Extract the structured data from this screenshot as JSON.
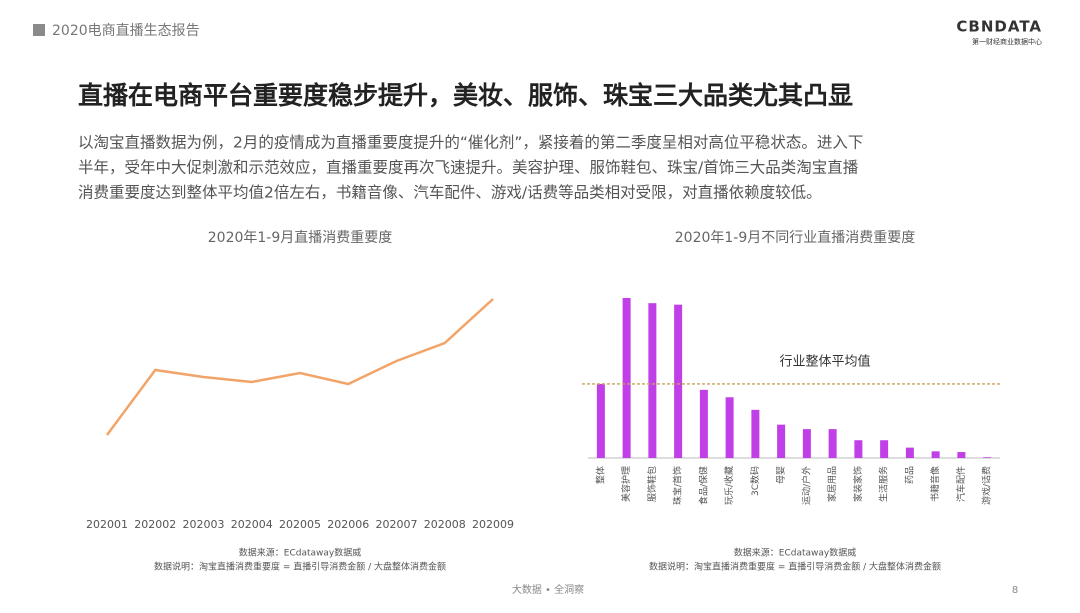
{
  "header": {
    "report": "2020电商直播生态报告",
    "logo": "CBNDATA",
    "logo_sub": "第一财经商业数据中心"
  },
  "title": "直播在电商平台重要度稳步提升，美妆、服饰、珠宝三大品类尤其凸显",
  "paragraph": [
    "以淘宝直播数据为例，2月的疫情成为直播重要度提升的“催化剂”，紧接着的第二季度呈相对高位平稳状态。进入下",
    "半年，受年中大促刺激和示范效应，直播重要度再次飞速提升。美容护理、服饰鞋包、珠宝/首饰三大品类淘宝直播",
    "消费重要度达到整体平均值2倍左右，书籍音像、汽车配件、游戏/话费等品类相对受限，对直播依赖度较低。"
  ],
  "chart_data": [
    {
      "type": "line",
      "title": "2020年1-9月直播消费重要度",
      "categories": [
        "202001",
        "202002",
        "202003",
        "202004",
        "202005",
        "202006",
        "202007",
        "202008",
        "202009"
      ],
      "values": [
        65,
        130,
        123,
        118,
        127,
        116,
        139,
        157,
        201
      ],
      "color": "#f2a468",
      "source": "数据来源：ECdataway数据威",
      "note": "数据说明：淘宝直播消费重要度 = 直播引导消费金额 / 大盘整体消费金额"
    },
    {
      "type": "bar",
      "title": "2020年1-9月不同行业直播消费重要度",
      "categories": [
        "整体",
        "美容护理",
        "服饰鞋包",
        "珠宝/首饰",
        "食品/保健",
        "玩乐/收藏",
        "3C数码",
        "母婴",
        "运动/户外",
        "家居用品",
        "家装家饰",
        "生活服务",
        "药品",
        "书籍音像",
        "汽车配件",
        "游戏/话费"
      ],
      "values": [
        1.0,
        2.16,
        2.09,
        2.07,
        0.92,
        0.82,
        0.65,
        0.45,
        0.39,
        0.39,
        0.24,
        0.24,
        0.14,
        0.09,
        0.08,
        0.01
      ],
      "color": "#c13fe6",
      "reference_line": {
        "value": 1.0,
        "label": "行业整体平均值",
        "color": "#c8a45e"
      },
      "source": "数据来源：ECdataway数据威",
      "note": "数据说明：淘宝直播消费重要度 = 直播引导消费金额 / 大盘整体消费金额"
    }
  ],
  "footer": {
    "text": "大数据 • 全洞察",
    "page": "8"
  }
}
